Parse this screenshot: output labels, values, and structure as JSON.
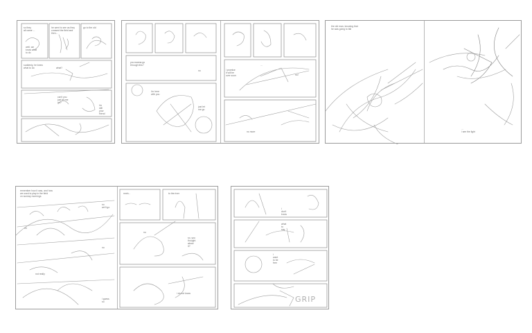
{
  "spreads": [
    {
      "id": "spread-1",
      "captions": [
        "so they",
        "all came ...",
        "he went to see as they",
        "crossed the field and",
        "then...",
        "go to the old",
        "well, we",
        "know what",
        "to do",
        "suddenly, he knew",
        "what to do",
        "what?",
        "can't you",
        "just let me",
        "go?",
        "i'm",
        "still",
        "your",
        "friend"
      ]
    },
    {
      "id": "spread-2",
      "captions": [
        "you wanna go",
        "through this?",
        "no",
        "i'm here",
        "with you",
        "just let",
        "me go",
        "i promise",
        "it will be",
        "over soon",
        "...",
        "no!",
        "no more"
      ]
    },
    {
      "id": "spread-3",
      "captions": [
        "the old man, knowing that",
        "he was going to fall",
        "...",
        "i see the light"
      ]
    },
    {
      "id": "spread-4",
      "captions": [
        "remember how it was, and how",
        "we used to play in the field",
        "on sunday mornings",
        "so",
        "we'll go",
        "oh",
        "no",
        "not really",
        "mmh...",
        "to the river",
        "so, you",
        "thought",
        "about",
        "it?",
        "no",
        "i do not know",
        "i guess",
        "so"
      ]
    },
    {
      "id": "spread-5",
      "captions": [
        "i",
        "don't",
        "know",
        "what",
        "to",
        "say",
        "i",
        "want",
        "to be",
        "free"
      ],
      "sfx": "GRIP"
    }
  ]
}
